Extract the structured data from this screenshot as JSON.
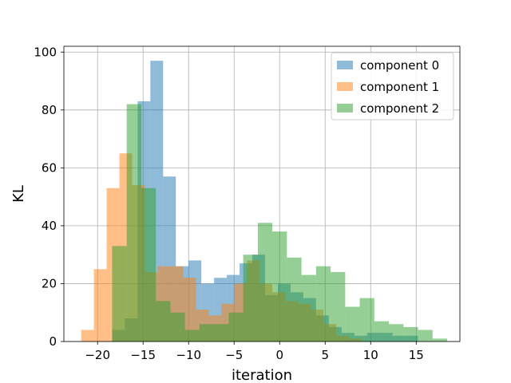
{
  "chart_data": {
    "type": "histogram",
    "xlabel": "iteration",
    "ylabel": "KL",
    "xlim": [
      -23.7,
      19.8
    ],
    "ylim": [
      0,
      102
    ],
    "x_ticks": [
      -20,
      -15,
      -10,
      -5,
      0,
      5,
      10,
      15
    ],
    "y_ticks": [
      0,
      20,
      40,
      60,
      80,
      100
    ],
    "grid": true,
    "legend_position": "top-right",
    "alpha": 0.5,
    "series": [
      {
        "name": "component 0",
        "color": "#1f77b4",
        "bin_width": 1.4,
        "bins": [
          {
            "x0": -18.4,
            "count": 4
          },
          {
            "x0": -17.0,
            "count": 8
          },
          {
            "x0": -15.6,
            "count": 83
          },
          {
            "x0": -14.2,
            "count": 97
          },
          {
            "x0": -12.8,
            "count": 57
          },
          {
            "x0": -11.4,
            "count": 26
          },
          {
            "x0": -10.0,
            "count": 28
          },
          {
            "x0": -8.6,
            "count": 20
          },
          {
            "x0": -7.2,
            "count": 22
          },
          {
            "x0": -5.8,
            "count": 23
          },
          {
            "x0": -4.4,
            "count": 27
          },
          {
            "x0": -3.0,
            "count": 30
          },
          {
            "x0": -1.6,
            "count": 16
          },
          {
            "x0": -0.2,
            "count": 20
          },
          {
            "x0": 1.2,
            "count": 17
          },
          {
            "x0": 2.6,
            "count": 15
          },
          {
            "x0": 4.0,
            "count": 9
          },
          {
            "x0": 5.4,
            "count": 5
          },
          {
            "x0": 6.8,
            "count": 3
          },
          {
            "x0": 8.2,
            "count": 2
          },
          {
            "x0": 9.6,
            "count": 3
          },
          {
            "x0": 11.0,
            "count": 3
          },
          {
            "x0": 12.4,
            "count": 2
          },
          {
            "x0": 13.8,
            "count": 2
          }
        ]
      },
      {
        "name": "component 1",
        "color": "#ff7f0e",
        "bin_width": 1.4,
        "bins": [
          {
            "x0": -21.8,
            "count": 4
          },
          {
            "x0": -20.4,
            "count": 25
          },
          {
            "x0": -19.0,
            "count": 53
          },
          {
            "x0": -17.6,
            "count": 65
          },
          {
            "x0": -16.2,
            "count": 54
          },
          {
            "x0": -14.8,
            "count": 24
          },
          {
            "x0": -13.4,
            "count": 26
          },
          {
            "x0": -12.0,
            "count": 26
          },
          {
            "x0": -10.6,
            "count": 22
          },
          {
            "x0": -9.2,
            "count": 11
          },
          {
            "x0": -7.8,
            "count": 9
          },
          {
            "x0": -6.4,
            "count": 13
          },
          {
            "x0": -5.0,
            "count": 20
          },
          {
            "x0": -3.6,
            "count": 28
          },
          {
            "x0": -2.2,
            "count": 20
          },
          {
            "x0": -0.8,
            "count": 17
          },
          {
            "x0": 0.6,
            "count": 14
          },
          {
            "x0": 2.0,
            "count": 13
          },
          {
            "x0": 3.4,
            "count": 11
          },
          {
            "x0": 4.8,
            "count": 6
          },
          {
            "x0": 6.2,
            "count": 2
          },
          {
            "x0": 7.6,
            "count": 1
          }
        ]
      },
      {
        "name": "component 2",
        "color": "#2ca02c",
        "bin_width": 1.6,
        "bins": [
          {
            "x0": -18.4,
            "count": 33
          },
          {
            "x0": -16.8,
            "count": 82
          },
          {
            "x0": -15.2,
            "count": 53
          },
          {
            "x0": -13.6,
            "count": 14
          },
          {
            "x0": -12.0,
            "count": 10
          },
          {
            "x0": -10.4,
            "count": 4
          },
          {
            "x0": -8.8,
            "count": 6
          },
          {
            "x0": -7.2,
            "count": 6
          },
          {
            "x0": -5.6,
            "count": 10
          },
          {
            "x0": -4.0,
            "count": 30
          },
          {
            "x0": -2.4,
            "count": 41
          },
          {
            "x0": -0.8,
            "count": 38
          },
          {
            "x0": 0.8,
            "count": 29
          },
          {
            "x0": 2.4,
            "count": 23
          },
          {
            "x0": 4.0,
            "count": 26
          },
          {
            "x0": 5.6,
            "count": 24
          },
          {
            "x0": 7.2,
            "count": 12
          },
          {
            "x0": 8.8,
            "count": 15
          },
          {
            "x0": 10.4,
            "count": 7
          },
          {
            "x0": 12.0,
            "count": 6
          },
          {
            "x0": 13.6,
            "count": 5
          },
          {
            "x0": 15.2,
            "count": 4
          },
          {
            "x0": 16.8,
            "count": 1
          }
        ]
      }
    ]
  }
}
